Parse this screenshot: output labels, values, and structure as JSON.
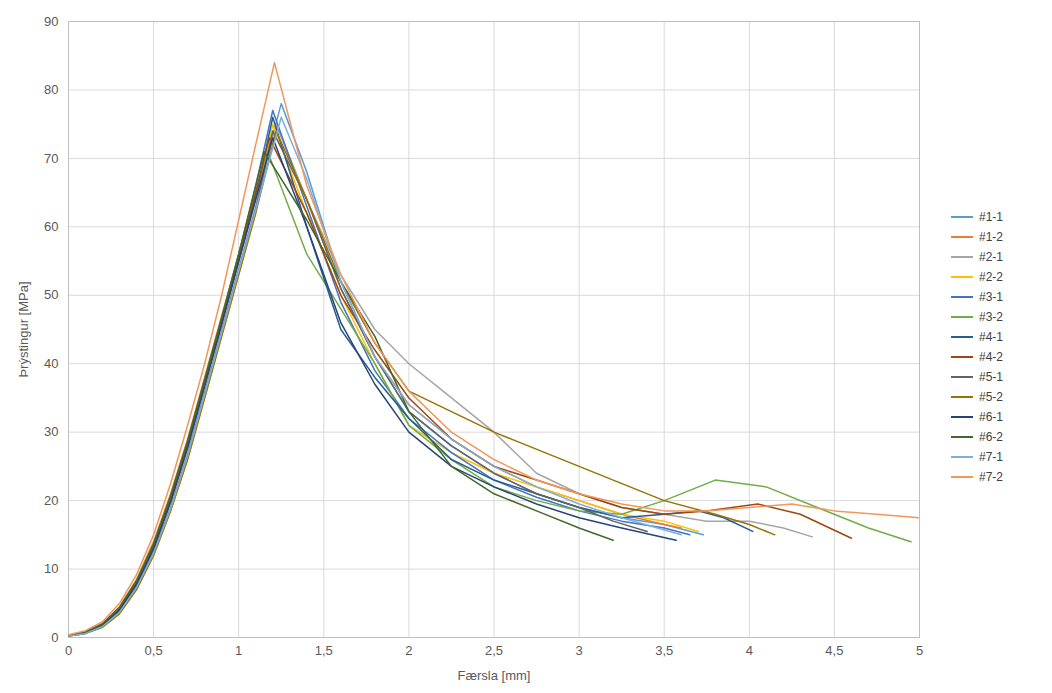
{
  "chart_data": {
    "type": "line",
    "x_label": "Færsla [mm]",
    "y_label": "Þrýstingur [MPa]",
    "xlim": [
      0,
      5
    ],
    "xticks": [
      0,
      {
        "value": 0.5,
        "label": "0,5"
      },
      1,
      {
        "value": 1.5,
        "label": "1,5"
      },
      2,
      {
        "value": 2.5,
        "label": "2,5"
      },
      3,
      {
        "value": 3.5,
        "label": "3,5"
      },
      4,
      {
        "value": 4.5,
        "label": "4,5"
      },
      5
    ],
    "ylim": [
      0,
      90
    ],
    "yticks": [
      0,
      10,
      20,
      30,
      40,
      50,
      60,
      70,
      80,
      90
    ],
    "grid": true,
    "legend": "right",
    "series": [
      {
        "name": "#1-1",
        "color": "#5B9BD5",
        "x": [
          0,
          0.1,
          0.2,
          0.3,
          0.4,
          0.5,
          0.6,
          0.7,
          0.8,
          0.9,
          1,
          1.1,
          1.25,
          1.4,
          1.6,
          1.8,
          2,
          2.25,
          2.5,
          2.75,
          3,
          3.25,
          3.5,
          3.73
        ],
        "values": [
          0.3,
          0.7,
          1.8,
          4,
          8,
          13,
          20,
          28,
          37,
          46,
          55,
          64,
          78,
          68,
          52,
          41,
          33,
          28,
          24,
          21,
          19,
          17.5,
          16.5,
          15
        ]
      },
      {
        "name": "#1-2",
        "color": "#ED7D31",
        "x": [
          0,
          0.1,
          0.2,
          0.3,
          0.4,
          0.5,
          0.6,
          0.7,
          0.8,
          0.9,
          1,
          1.1,
          1.22,
          1.4,
          1.6,
          1.8,
          2,
          2.25,
          2.5,
          2.75,
          3,
          3.25,
          3.5,
          3.6
        ],
        "values": [
          0.3,
          0.8,
          2,
          4.5,
          8.5,
          14,
          21,
          29,
          38,
          47,
          56,
          65,
          75,
          64,
          51,
          41,
          34,
          29,
          25,
          22,
          20,
          18,
          16.5,
          16
        ]
      },
      {
        "name": "#2-1",
        "color": "#A5A5A5",
        "x": [
          0,
          0.1,
          0.2,
          0.3,
          0.4,
          0.5,
          0.6,
          0.7,
          0.8,
          0.9,
          1,
          1.1,
          1.22,
          1.4,
          1.6,
          1.8,
          2,
          2.25,
          2.5,
          2.75,
          3,
          3.25,
          3.5,
          3.75,
          4,
          4.2,
          4.37
        ],
        "values": [
          0.3,
          0.7,
          1.7,
          3.8,
          7.5,
          12.5,
          19,
          27,
          36,
          45,
          54,
          63,
          75,
          64,
          53,
          45,
          40,
          35,
          30,
          24,
          21,
          19,
          18,
          17,
          17,
          16,
          14.7
        ]
      },
      {
        "name": "#2-2",
        "color": "#FFC000",
        "x": [
          0,
          0.1,
          0.2,
          0.3,
          0.4,
          0.5,
          0.6,
          0.7,
          0.8,
          0.9,
          1,
          1.1,
          1.2,
          1.4,
          1.6,
          1.8,
          2,
          2.25,
          2.5,
          2.75,
          3,
          3.25,
          3.5,
          3.7
        ],
        "values": [
          0.2,
          0.6,
          1.5,
          3.5,
          7,
          12,
          18.5,
          26,
          35,
          44,
          53,
          62,
          75,
          62,
          50,
          40,
          31,
          27,
          24,
          22,
          20,
          18,
          17,
          15.5
        ]
      },
      {
        "name": "#3-1",
        "color": "#4472C4",
        "x": [
          0,
          0.1,
          0.2,
          0.3,
          0.4,
          0.5,
          0.6,
          0.7,
          0.8,
          0.9,
          1,
          1.1,
          1.2,
          1.4,
          1.6,
          1.8,
          2,
          2.25,
          2.5,
          2.75,
          3,
          3.25,
          3.5,
          3.65
        ],
        "values": [
          0.3,
          0.8,
          2,
          4.3,
          8.2,
          13.5,
          20.5,
          28.5,
          37.5,
          46.5,
          56,
          66,
          77,
          63,
          49,
          39,
          32,
          27,
          23,
          20.5,
          18.5,
          17,
          16,
          15
        ]
      },
      {
        "name": "#3-2",
        "color": "#70AD47",
        "x": [
          0,
          0.1,
          0.2,
          0.3,
          0.4,
          0.5,
          0.6,
          0.7,
          0.8,
          0.9,
          1,
          1.1,
          1.17,
          1.4,
          1.6,
          1.8,
          2,
          2.25,
          2.5,
          2.75,
          3,
          3.25,
          3.5,
          3.8,
          4.1,
          4.4,
          4.7,
          4.95
        ],
        "values": [
          0.3,
          0.8,
          2,
          4.4,
          8.3,
          13.7,
          20.7,
          28.7,
          37.7,
          46.7,
          56,
          65,
          71,
          56,
          48,
          40,
          31,
          26,
          22,
          20,
          18.5,
          18,
          20,
          23,
          22,
          19,
          16,
          14
        ]
      },
      {
        "name": "#4-1",
        "color": "#255E91",
        "x": [
          0,
          0.1,
          0.2,
          0.3,
          0.4,
          0.5,
          0.6,
          0.7,
          0.8,
          0.9,
          1,
          1.1,
          1.2,
          1.4,
          1.6,
          1.8,
          2,
          2.25,
          2.5,
          2.75,
          3,
          3.25,
          3.5,
          3.7,
          3.85,
          4.02
        ],
        "values": [
          0.3,
          0.7,
          1.8,
          4,
          7.8,
          13,
          19.8,
          27.8,
          36.8,
          45.8,
          55,
          64.5,
          76,
          60,
          45,
          38,
          32,
          26,
          23,
          21,
          19,
          17.5,
          18,
          18.5,
          17.5,
          15.5
        ]
      },
      {
        "name": "#4-2",
        "color": "#9E480E",
        "x": [
          0,
          0.1,
          0.2,
          0.3,
          0.4,
          0.5,
          0.6,
          0.7,
          0.8,
          0.9,
          1,
          1.1,
          1.18,
          1.4,
          1.6,
          1.8,
          2,
          2.25,
          2.5,
          2.75,
          3,
          3.25,
          3.5,
          3.75,
          4.05,
          4.3,
          4.6
        ],
        "values": [
          0.3,
          0.8,
          1.9,
          4.2,
          8,
          13.3,
          20.2,
          28.2,
          37.2,
          46.2,
          55.5,
          65,
          73,
          62,
          50,
          42,
          35,
          29,
          25,
          23,
          21,
          19,
          18,
          18.5,
          19.5,
          18,
          14.5
        ]
      },
      {
        "name": "#5-1",
        "color": "#636363",
        "x": [
          0,
          0.1,
          0.2,
          0.3,
          0.4,
          0.5,
          0.6,
          0.7,
          0.8,
          0.9,
          1,
          1.1,
          1.2,
          1.4,
          1.6,
          1.8,
          2,
          2.25,
          2.5,
          2.75,
          3,
          3.2,
          3.4
        ],
        "values": [
          0.2,
          0.6,
          1.6,
          3.7,
          7.3,
          12.3,
          18.8,
          26.5,
          35.5,
          44.5,
          53.5,
          62.5,
          74,
          64,
          51,
          41,
          33,
          28,
          24,
          21,
          19,
          17,
          15.5
        ]
      },
      {
        "name": "#5-2",
        "color": "#997300",
        "x": [
          0,
          0.1,
          0.2,
          0.3,
          0.4,
          0.5,
          0.6,
          0.7,
          0.8,
          0.9,
          1,
          1.1,
          1.22,
          1.4,
          1.6,
          1.8,
          2,
          2.5,
          3,
          3.5,
          3.8,
          4,
          4.15
        ],
        "values": [
          0.2,
          0.6,
          1.5,
          3.5,
          7,
          12,
          18.5,
          26,
          35,
          44,
          53,
          62,
          74,
          64,
          52,
          43,
          36,
          30,
          25,
          20,
          18,
          16.5,
          15
        ]
      },
      {
        "name": "#6-1",
        "color": "#264478",
        "x": [
          0,
          0.1,
          0.2,
          0.3,
          0.4,
          0.5,
          0.6,
          0.7,
          0.8,
          0.9,
          1,
          1.1,
          1.2,
          1.4,
          1.6,
          1.8,
          2,
          2.25,
          2.5,
          2.75,
          3,
          3.25,
          3.57
        ],
        "values": [
          0.3,
          0.7,
          1.8,
          4,
          7.8,
          13,
          19.8,
          27.8,
          36.8,
          45.8,
          55,
          64,
          73,
          60,
          46,
          37,
          30,
          25,
          22,
          19.5,
          17.5,
          16,
          14.2
        ]
      },
      {
        "name": "#6-2",
        "color": "#43682B",
        "x": [
          0,
          0.1,
          0.2,
          0.3,
          0.4,
          0.5,
          0.6,
          0.7,
          0.8,
          0.9,
          1,
          1.1,
          1.15,
          1.4,
          1.6,
          1.8,
          2,
          2.25,
          2.5,
          2.75,
          3,
          3.2
        ],
        "values": [
          0.3,
          0.8,
          2,
          4.4,
          8.3,
          13.7,
          20.7,
          28.7,
          37.7,
          46.7,
          56,
          66,
          71,
          61,
          52,
          44,
          33,
          25,
          21,
          18.5,
          16,
          14.2
        ]
      },
      {
        "name": "#7-1",
        "color": "#7CAFDD",
        "x": [
          0,
          0.1,
          0.2,
          0.3,
          0.4,
          0.5,
          0.6,
          0.7,
          0.8,
          0.9,
          1,
          1.1,
          1.25,
          1.4,
          1.6,
          1.8,
          2,
          2.25,
          2.5,
          2.75,
          3,
          3.25,
          3.6
        ],
        "values": [
          0.2,
          0.6,
          1.6,
          3.7,
          7.3,
          12.3,
          18.8,
          26.5,
          35.5,
          44.5,
          53.5,
          62.5,
          76,
          67,
          52,
          41,
          34,
          29,
          25,
          22,
          19.5,
          17.5,
          15
        ]
      },
      {
        "name": "#7-2",
        "color": "#F1975A",
        "x": [
          0,
          0.1,
          0.2,
          0.3,
          0.4,
          0.5,
          0.6,
          0.7,
          0.8,
          0.9,
          1,
          1.1,
          1.21,
          1.4,
          1.6,
          1.8,
          2,
          2.25,
          2.5,
          2.75,
          3,
          3.25,
          3.5,
          3.75,
          4,
          4.25,
          4.5,
          4.75,
          5
        ],
        "values": [
          0.4,
          1,
          2.3,
          5,
          9.2,
          15,
          22.5,
          31,
          40,
          50,
          61,
          72,
          84,
          66,
          53,
          43,
          36,
          30,
          26,
          23,
          21,
          19.5,
          18.5,
          18.5,
          19,
          19.5,
          18.5,
          18,
          17.5
        ]
      }
    ]
  }
}
